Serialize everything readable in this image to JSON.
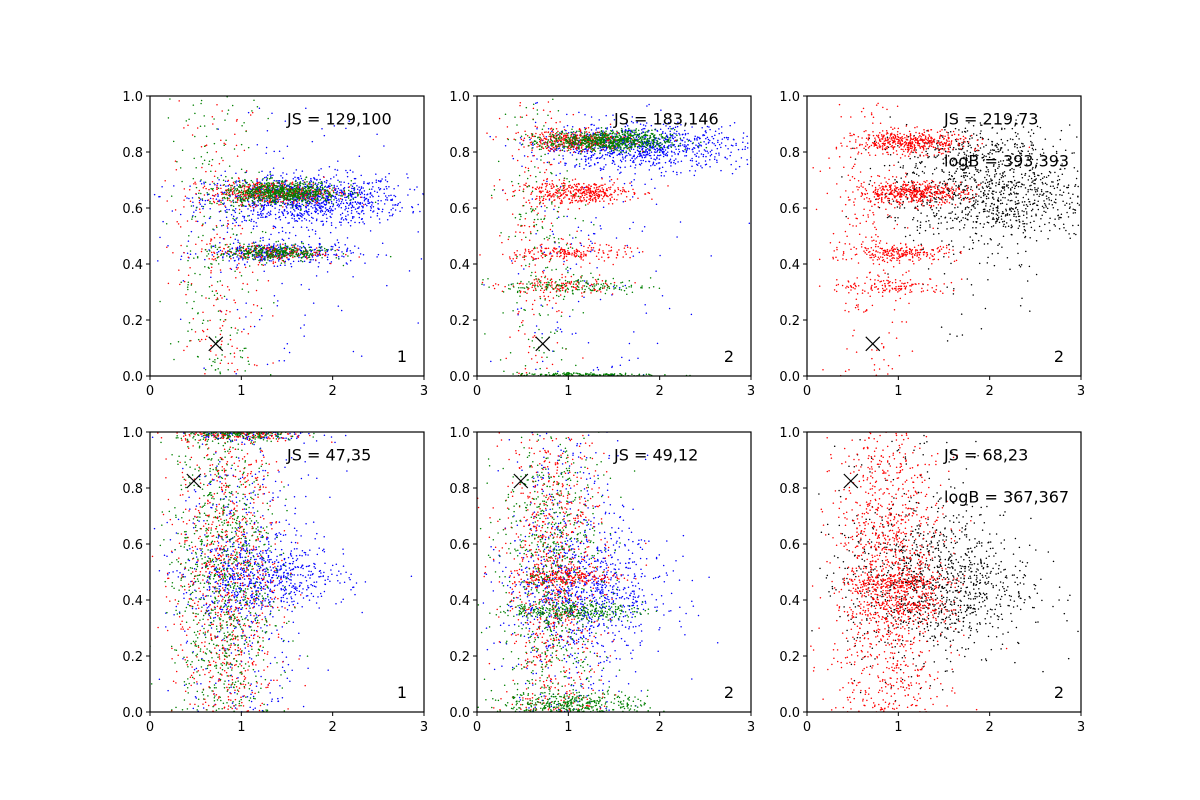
{
  "chart_data": [
    {
      "type": "scatter",
      "panel": "top-left",
      "xlim": [
        0,
        3
      ],
      "ylim": [
        0,
        1
      ],
      "xticks": [
        "0",
        "1",
        "2",
        "3"
      ],
      "yticks": [
        "0.0",
        "0.2",
        "0.4",
        "0.6",
        "0.8",
        "1.0"
      ],
      "annotations": [
        "JS = 129,100"
      ],
      "panel_label": "1",
      "marker": {
        "x": 0.72,
        "y": 0.115,
        "symbol": "x"
      },
      "series": [
        {
          "name": "blue",
          "color": "#0000ff",
          "clusters": [
            {
              "cx": 1.7,
              "sx": 0.55,
              "cy": 0.63,
              "sy": 0.045,
              "n": 1100
            },
            {
              "cx": 1.4,
              "sx": 0.4,
              "cy": 0.44,
              "sy": 0.02,
              "n": 350
            },
            {
              "cx": 1.4,
              "sx": 0.55,
              "cy": 0.5,
              "sy": 0.3,
              "n": 140
            }
          ]
        },
        {
          "name": "red",
          "color": "#ff0000",
          "clusters": [
            {
              "cx": 1.35,
              "sx": 0.35,
              "cy": 0.655,
              "sy": 0.02,
              "n": 450
            },
            {
              "cx": 1.3,
              "sx": 0.3,
              "cy": 0.44,
              "sy": 0.015,
              "n": 200
            },
            {
              "cx": 0.75,
              "sx": 0.25,
              "cy": 0.5,
              "sy": 0.35,
              "n": 220
            }
          ]
        },
        {
          "name": "green",
          "color": "#008000",
          "clusters": [
            {
              "cx": 1.45,
              "sx": 0.32,
              "cy": 0.655,
              "sy": 0.02,
              "n": 700
            },
            {
              "cx": 1.35,
              "sx": 0.3,
              "cy": 0.44,
              "sy": 0.015,
              "n": 320
            },
            {
              "cx": 0.75,
              "sx": 0.25,
              "cy": 0.5,
              "sy": 0.35,
              "n": 240
            }
          ]
        }
      ]
    },
    {
      "type": "scatter",
      "panel": "top-middle",
      "xlim": [
        0,
        3
      ],
      "ylim": [
        0,
        1
      ],
      "xticks": [
        "0",
        "1",
        "2",
        "3"
      ],
      "yticks": [
        "0.0",
        "0.2",
        "0.4",
        "0.6",
        "0.8",
        "1.0"
      ],
      "annotations": [
        "JS = 183,146"
      ],
      "panel_label": "2",
      "marker": {
        "x": 0.72,
        "y": 0.115,
        "symbol": "x"
      },
      "series": [
        {
          "name": "blue",
          "color": "#0000ff",
          "clusters": [
            {
              "cx": 1.8,
              "sx": 0.55,
              "cy": 0.82,
              "sy": 0.04,
              "n": 900
            },
            {
              "cx": 1.2,
              "sx": 0.5,
              "cy": 0.45,
              "sy": 0.28,
              "n": 160
            }
          ]
        },
        {
          "name": "red",
          "color": "#ff0000",
          "clusters": [
            {
              "cx": 1.1,
              "sx": 0.3,
              "cy": 0.84,
              "sy": 0.018,
              "n": 380
            },
            {
              "cx": 1.1,
              "sx": 0.3,
              "cy": 0.655,
              "sy": 0.02,
              "n": 380
            },
            {
              "cx": 1.05,
              "sx": 0.3,
              "cy": 0.44,
              "sy": 0.015,
              "n": 180
            },
            {
              "cx": 0.9,
              "sx": 0.3,
              "cy": 0.32,
              "sy": 0.015,
              "n": 120
            },
            {
              "cx": 0.65,
              "sx": 0.22,
              "cy": 0.55,
              "sy": 0.3,
              "n": 200
            }
          ]
        },
        {
          "name": "green",
          "color": "#008000",
          "clusters": [
            {
              "cx": 1.45,
              "sx": 0.35,
              "cy": 0.84,
              "sy": 0.018,
              "n": 750
            },
            {
              "cx": 1.1,
              "sx": 0.4,
              "cy": 0.32,
              "sy": 0.015,
              "n": 150
            },
            {
              "cx": 1.2,
              "sx": 0.4,
              "cy": 0.005,
              "sy": 0.004,
              "n": 150
            },
            {
              "cx": 0.7,
              "sx": 0.22,
              "cy": 0.55,
              "sy": 0.3,
              "n": 220
            }
          ]
        }
      ]
    },
    {
      "type": "scatter",
      "panel": "top-right",
      "xlim": [
        0,
        3
      ],
      "ylim": [
        0,
        1
      ],
      "xticks": [
        "0",
        "1",
        "2",
        "3"
      ],
      "yticks": [
        "0.0",
        "0.2",
        "0.4",
        "0.6",
        "0.8",
        "1.0"
      ],
      "annotations": [
        "JS = 219,73",
        "logB = 393,393"
      ],
      "panel_label": "2",
      "marker": {
        "x": 0.72,
        "y": 0.115,
        "symbol": "x"
      },
      "series": [
        {
          "name": "black",
          "color": "#000000",
          "clusters": [
            {
              "cx": 2.0,
              "sx": 0.55,
              "cy": 0.64,
              "sy": 0.08,
              "n": 900
            },
            {
              "cx": 1.9,
              "sx": 0.5,
              "cy": 0.82,
              "sy": 0.04,
              "n": 250
            },
            {
              "cx": 1.8,
              "sx": 0.5,
              "cy": 0.4,
              "sy": 0.15,
              "n": 60
            }
          ]
        },
        {
          "name": "red",
          "color": "#ff0000",
          "clusters": [
            {
              "cx": 1.15,
              "sx": 0.3,
              "cy": 0.835,
              "sy": 0.02,
              "n": 450
            },
            {
              "cx": 1.15,
              "sx": 0.3,
              "cy": 0.655,
              "sy": 0.02,
              "n": 450
            },
            {
              "cx": 1.05,
              "sx": 0.3,
              "cy": 0.44,
              "sy": 0.015,
              "n": 220
            },
            {
              "cx": 0.95,
              "sx": 0.3,
              "cy": 0.32,
              "sy": 0.015,
              "n": 120
            },
            {
              "cx": 0.7,
              "sx": 0.25,
              "cy": 0.55,
              "sy": 0.3,
              "n": 260
            }
          ]
        }
      ]
    },
    {
      "type": "scatter",
      "panel": "bottom-left",
      "xlim": [
        0,
        3
      ],
      "ylim": [
        0,
        1
      ],
      "xticks": [
        "0",
        "1",
        "2",
        "3"
      ],
      "yticks": [
        "0.0",
        "0.2",
        "0.4",
        "0.6",
        "0.8",
        "1.0"
      ],
      "annotations": [
        "JS = 47,35"
      ],
      "panel_label": "1",
      "marker": {
        "x": 0.48,
        "y": 0.825,
        "symbol": "x"
      },
      "series": [
        {
          "name": "blue",
          "color": "#0000ff",
          "clusters": [
            {
              "cx": 1.25,
              "sx": 0.45,
              "cy": 0.48,
              "sy": 0.06,
              "n": 600
            },
            {
              "cx": 1.0,
              "sx": 0.35,
              "cy": 0.5,
              "sy": 0.3,
              "n": 500
            },
            {
              "cx": 1.1,
              "sx": 0.4,
              "cy": 0.99,
              "sy": 0.012,
              "n": 120
            }
          ]
        },
        {
          "name": "red",
          "color": "#ff0000",
          "clusters": [
            {
              "cx": 0.85,
              "sx": 0.28,
              "cy": 0.5,
              "sy": 0.3,
              "n": 900
            },
            {
              "cx": 1.0,
              "sx": 0.35,
              "cy": 0.99,
              "sy": 0.012,
              "n": 150
            }
          ]
        },
        {
          "name": "green",
          "color": "#008000",
          "clusters": [
            {
              "cx": 0.8,
              "sx": 0.28,
              "cy": 0.5,
              "sy": 0.3,
              "n": 950
            },
            {
              "cx": 1.0,
              "sx": 0.35,
              "cy": 0.99,
              "sy": 0.012,
              "n": 180
            }
          ]
        }
      ]
    },
    {
      "type": "scatter",
      "panel": "bottom-middle",
      "xlim": [
        0,
        3
      ],
      "ylim": [
        0,
        1
      ],
      "xticks": [
        "0",
        "1",
        "2",
        "3"
      ],
      "yticks": [
        "0.0",
        "0.2",
        "0.4",
        "0.6",
        "0.8",
        "1.0"
      ],
      "annotations": [
        "JS = 49,12"
      ],
      "panel_label": "2",
      "marker": {
        "x": 0.48,
        "y": 0.825,
        "symbol": "x"
      },
      "series": [
        {
          "name": "blue",
          "color": "#0000ff",
          "clusters": [
            {
              "cx": 1.2,
              "sx": 0.45,
              "cy": 0.42,
              "sy": 0.1,
              "n": 700
            },
            {
              "cx": 1.0,
              "sx": 0.35,
              "cy": 0.5,
              "sy": 0.3,
              "n": 500
            }
          ]
        },
        {
          "name": "red",
          "color": "#ff0000",
          "clusters": [
            {
              "cx": 0.85,
              "sx": 0.28,
              "cy": 0.5,
              "sy": 0.3,
              "n": 900
            },
            {
              "cx": 1.0,
              "sx": 0.3,
              "cy": 0.48,
              "sy": 0.015,
              "n": 200
            }
          ]
        },
        {
          "name": "green",
          "color": "#008000",
          "clusters": [
            {
              "cx": 0.8,
              "sx": 0.28,
              "cy": 0.5,
              "sy": 0.3,
              "n": 800
            },
            {
              "cx": 1.1,
              "sx": 0.35,
              "cy": 0.36,
              "sy": 0.015,
              "n": 250
            },
            {
              "cx": 1.1,
              "sx": 0.4,
              "cy": 0.03,
              "sy": 0.02,
              "n": 300
            }
          ]
        }
      ]
    },
    {
      "type": "scatter",
      "panel": "bottom-right",
      "xlim": [
        0,
        3
      ],
      "ylim": [
        0,
        1
      ],
      "xticks": [
        "0",
        "1",
        "2",
        "3"
      ],
      "yticks": [
        "0.0",
        "0.2",
        "0.4",
        "0.6",
        "0.8",
        "1.0"
      ],
      "annotations": [
        "JS = 68,23",
        "logB = 367,367"
      ],
      "panel_label": "2",
      "marker": {
        "x": 0.48,
        "y": 0.825,
        "symbol": "x"
      },
      "series": [
        {
          "name": "black",
          "color": "#000000",
          "clusters": [
            {
              "cx": 1.45,
              "sx": 0.5,
              "cy": 0.45,
              "sy": 0.12,
              "n": 900
            },
            {
              "cx": 1.2,
              "sx": 0.45,
              "cy": 0.6,
              "sy": 0.25,
              "n": 300
            }
          ]
        },
        {
          "name": "red",
          "color": "#ff0000",
          "clusters": [
            {
              "cx": 0.9,
              "sx": 0.3,
              "cy": 0.5,
              "sy": 0.3,
              "n": 1300
            },
            {
              "cx": 1.0,
              "sx": 0.3,
              "cy": 0.46,
              "sy": 0.02,
              "n": 200
            },
            {
              "cx": 1.0,
              "sx": 0.3,
              "cy": 0.37,
              "sy": 0.02,
              "n": 150
            }
          ]
        }
      ]
    }
  ]
}
